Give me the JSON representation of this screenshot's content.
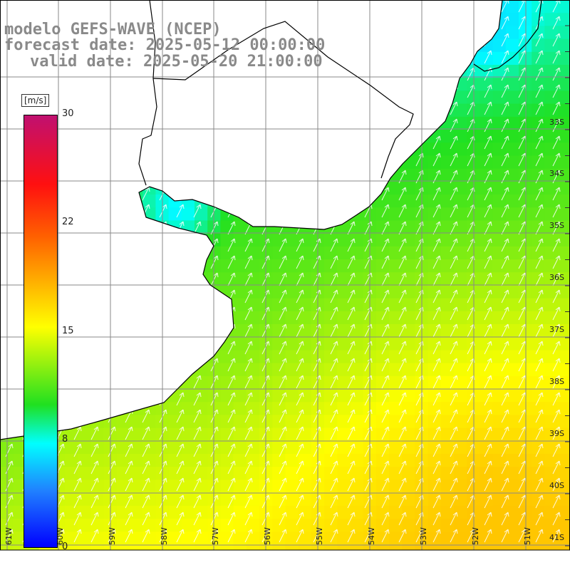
{
  "title": {
    "model": "modelo GEFS-WAVE (NCEP)",
    "forecast": "forecast date: 2025-05-12 00:00:00",
    "valid": "valid date: 2025-05-20 21:00:00"
  },
  "colorbar": {
    "unit": "[m/s]",
    "ticks": [
      "30",
      "22",
      "15",
      "8",
      "0"
    ],
    "min": 0,
    "max": 30
  },
  "lon_labels": [
    "61W",
    "60W",
    "59W",
    "58W",
    "57W",
    "56W",
    "55W",
    "54W",
    "53W",
    "52W",
    "51W"
  ],
  "lat_labels": [
    "33S",
    "34S",
    "35S",
    "36S",
    "37S",
    "38S",
    "39S",
    "40S",
    "41S"
  ],
  "colors": {
    "land": "#ffffff",
    "grid": "#888888",
    "coast": "#000000",
    "arrow": "#ffffff"
  }
}
